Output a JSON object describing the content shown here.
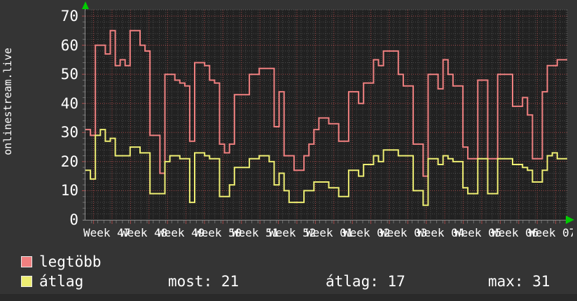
{
  "branding": {
    "vertical_title": "onlinestream.live"
  },
  "y_axis": {
    "ticks": [
      "0",
      "10",
      "20",
      "30",
      "40",
      "50",
      "60",
      "70"
    ]
  },
  "x_axis": {
    "labels": [
      "Week 47",
      "Week 48",
      "Week 49",
      "Week 50",
      "Week 51",
      "Week 52",
      "Week 01",
      "Week 02",
      "Week 03",
      "Week 04",
      "Week 05",
      "Week 06",
      "Week 07"
    ]
  },
  "legend": {
    "series1_label": "legtöbb",
    "series2_label": "átlag",
    "stats": [
      {
        "text": "most: 21"
      },
      {
        "text": "átlag: 17"
      },
      {
        "text": "max: 31"
      }
    ]
  },
  "colors": {
    "background": "#343434",
    "plot_background": "#212121",
    "grid_minor": "#4a4a4a",
    "grid_major": "#a44848",
    "axis": "#8a8a8a",
    "frame_dotted": "#5e5e5e",
    "text": "#ffffff",
    "arrow": "#00cc00",
    "series1": "#f08080",
    "series2": "#eeee72"
  },
  "chart_data": {
    "type": "line",
    "line_style": "step-after",
    "title": "",
    "xlabel": "",
    "ylabel": "onlinestream.live",
    "x_unit": "days (one point per day, ~14 weeks)",
    "x_week_labels": [
      "Week 47",
      "Week 48",
      "Week 49",
      "Week 50",
      "Week 51",
      "Week 52",
      "Week 01",
      "Week 02",
      "Week 03",
      "Week 04",
      "Week 05",
      "Week 06"
    ],
    "ylim": [
      0,
      72
    ],
    "y_ticks": [
      0,
      10,
      20,
      30,
      40,
      50,
      60,
      70
    ],
    "grid": true,
    "legend_position": "bottom-left",
    "series": [
      {
        "name": "legtöbb",
        "color": "#f08080",
        "values": [
          31,
          29,
          60,
          60,
          57,
          65,
          53,
          55,
          53,
          65,
          65,
          60,
          58,
          29,
          29,
          16,
          50,
          50,
          48,
          47,
          46,
          27,
          54,
          54,
          53,
          48,
          47,
          26,
          23,
          26,
          43,
          43,
          43,
          50,
          50,
          52,
          52,
          52,
          32,
          44,
          22,
          22,
          17,
          17,
          22,
          26,
          31,
          35,
          35,
          33,
          33,
          27,
          27,
          44,
          44,
          40,
          47,
          47,
          55,
          53,
          58,
          58,
          58,
          50,
          46,
          46,
          26,
          26,
          15,
          50,
          50,
          45,
          55,
          50,
          46,
          46,
          25,
          21,
          21,
          48,
          48,
          21,
          21,
          50,
          50,
          50,
          39,
          39,
          42,
          36,
          21,
          21,
          44,
          53,
          53,
          55,
          55
        ]
      },
      {
        "name": "átlag",
        "color": "#eeee72",
        "values": [
          17,
          14,
          29,
          31,
          27,
          28,
          22,
          22,
          22,
          25,
          25,
          23,
          23,
          9,
          9,
          9,
          20,
          22,
          22,
          21,
          21,
          6,
          23,
          23,
          22,
          21,
          21,
          8,
          8,
          12,
          18,
          18,
          18,
          21,
          21,
          22,
          22,
          20,
          12,
          16,
          10,
          6,
          6,
          6,
          10,
          10,
          13,
          13,
          13,
          11,
          11,
          8,
          8,
          17,
          17,
          15,
          19,
          19,
          22,
          20,
          24,
          24,
          24,
          22,
          22,
          22,
          10,
          10,
          5,
          21,
          21,
          19,
          22,
          21,
          20,
          20,
          11,
          9,
          9,
          21,
          21,
          9,
          9,
          21,
          21,
          21,
          19,
          19,
          18,
          17,
          13,
          13,
          17,
          22,
          23,
          21,
          21
        ]
      }
    ],
    "stats": {
      "most": 21,
      "átlag": 17,
      "max": 31
    }
  }
}
